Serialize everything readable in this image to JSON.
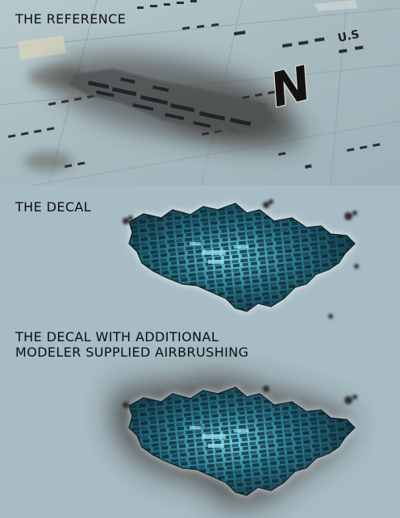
{
  "sections": {
    "reference": {
      "title": "THE REFERENCE"
    },
    "decal": {
      "title": "THE DECAL"
    },
    "airbrushed": {
      "title": "THE DECAL WITH ADDITIONAL\nMODELER SUPPLIED AIRBRUSHING"
    }
  },
  "reference_photo": {
    "hull_marking": "U.S",
    "registry_letter": "N"
  },
  "colors": {
    "hull_panel": "#a8bcc2",
    "background": "#a7bcc4",
    "scorch": "#3a3430",
    "decal_blue": "#2f7f95"
  }
}
